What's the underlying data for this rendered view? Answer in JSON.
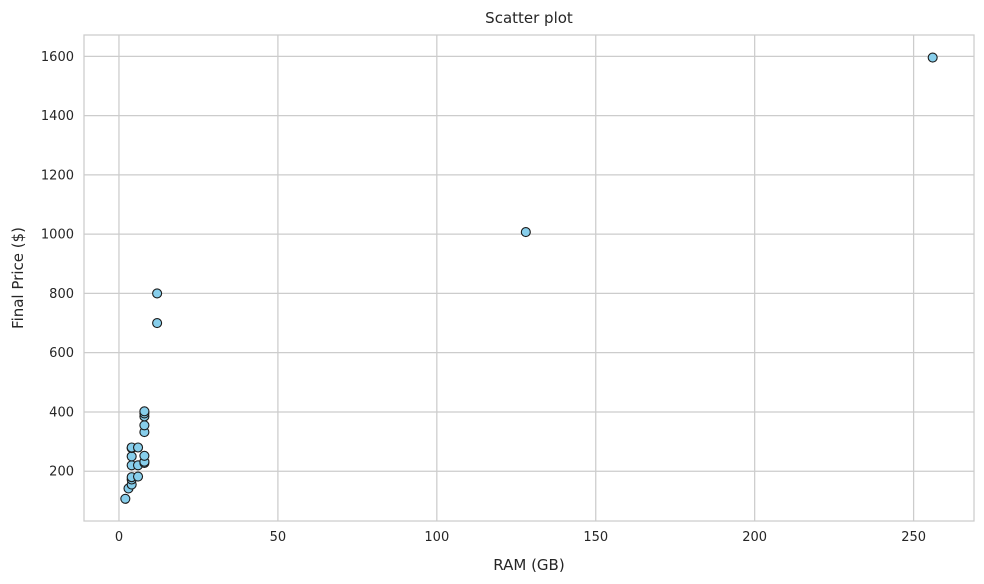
{
  "chart_data": {
    "type": "scatter",
    "title": "Scatter plot",
    "xlabel": "RAM (GB)",
    "ylabel": "Final Price ($)",
    "xlim": [
      -11,
      269
    ],
    "ylim": [
      32,
      1672
    ],
    "xticks": [
      0,
      50,
      100,
      150,
      200,
      250
    ],
    "yticks": [
      200,
      400,
      600,
      800,
      1000,
      1200,
      1400,
      1600
    ],
    "grid": true,
    "legend": "none",
    "marker_color": "#87ceeb",
    "marker_edge_color": "#1a1a1a",
    "points": [
      {
        "x": 2,
        "y": 107
      },
      {
        "x": 3,
        "y": 142
      },
      {
        "x": 4,
        "y": 155
      },
      {
        "x": 4,
        "y": 172
      },
      {
        "x": 4,
        "y": 180
      },
      {
        "x": 4,
        "y": 220
      },
      {
        "x": 4,
        "y": 250
      },
      {
        "x": 4,
        "y": 278
      },
      {
        "x": 4,
        "y": 280
      },
      {
        "x": 6,
        "y": 182
      },
      {
        "x": 6,
        "y": 220
      },
      {
        "x": 6,
        "y": 280
      },
      {
        "x": 8,
        "y": 228
      },
      {
        "x": 8,
        "y": 232
      },
      {
        "x": 8,
        "y": 252
      },
      {
        "x": 8,
        "y": 332
      },
      {
        "x": 8,
        "y": 355
      },
      {
        "x": 8,
        "y": 385
      },
      {
        "x": 8,
        "y": 395
      },
      {
        "x": 8,
        "y": 402
      },
      {
        "x": 12,
        "y": 700
      },
      {
        "x": 12,
        "y": 800
      },
      {
        "x": 128,
        "y": 1007
      },
      {
        "x": 256,
        "y": 1596
      }
    ]
  }
}
